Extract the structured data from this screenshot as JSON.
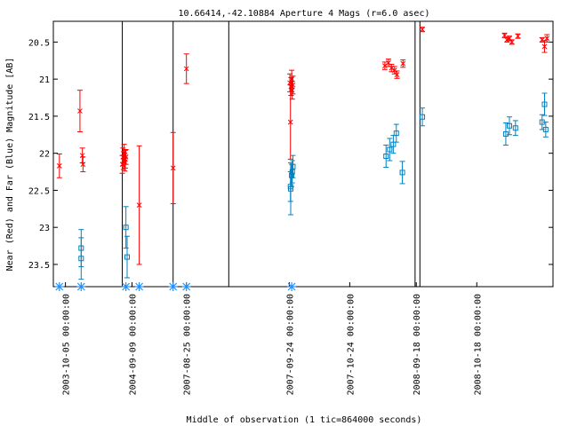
{
  "chart_data": {
    "type": "scatter",
    "title": "10.66414,-42.10884   Aperture 4 Mags (r=6.0 asec)",
    "xlabel": "Middle of observation (1 tic=864000 seconds)",
    "ylabel": "Near (Red) and Far (Blue) Magnitude [AB]",
    "y_inverted": true,
    "ylim": [
      23.8,
      20.22
    ],
    "y_ticks": [
      20.5,
      21,
      21.5,
      22,
      22.5,
      23,
      23.5
    ],
    "y_tick_labels": [
      "20.5",
      "21",
      "21.5",
      "22",
      "22.5",
      "23",
      "23.5"
    ],
    "x_tick_labels": [
      "2003-10-05 00:00:00",
      "2004-09-09 00:00:00",
      "2007-08-25 00:00:00",
      "2007-09-24 00:00:00",
      "2007-10-24 00:00:00",
      "2008-09-18 00:00:00",
      "2008-10-18 00:00:00"
    ],
    "grid": false,
    "colors": {
      "near": "#ff0000",
      "far": "#0080c0",
      "marker": "#1e90ff",
      "far_text": "#0000ff"
    },
    "series": [
      {
        "name": "Near (Red)",
        "color": "#ff0000",
        "marker": "x",
        "points": [
          {
            "x": 0.5,
            "y": 22.17,
            "err": 0.16
          },
          {
            "x": 2.2,
            "y": 21.43,
            "err": 0.28
          },
          {
            "x": 2.4,
            "y": 22.03,
            "err": 0.1
          },
          {
            "x": 2.45,
            "y": 22.15,
            "err": 0.1
          },
          {
            "x": 5.7,
            "y": 22.15,
            "err": 0.12
          },
          {
            "x": 5.75,
            "y": 22.05,
            "err": 0.12
          },
          {
            "x": 5.8,
            "y": 22.1,
            "err": 0.12
          },
          {
            "x": 5.85,
            "y": 22.0,
            "err": 0.12
          },
          {
            "x": 5.9,
            "y": 22.12,
            "err": 0.12
          },
          {
            "x": 5.95,
            "y": 22.08,
            "err": 0.12
          },
          {
            "x": 6.0,
            "y": 22.05,
            "err": 0.1
          },
          {
            "x": 7.1,
            "y": 22.7,
            "err": 0.8
          },
          {
            "x": 9.9,
            "y": 22.2,
            "err": 0.48
          },
          {
            "x": 11.0,
            "y": 20.86,
            "err": 0.2
          },
          {
            "x": 19.6,
            "y": 21.58,
            "err": 0.5
          },
          {
            "x": 19.55,
            "y": 21.05,
            "err": 0.12
          },
          {
            "x": 19.65,
            "y": 21.1,
            "err": 0.12
          },
          {
            "x": 19.7,
            "y": 21.0,
            "err": 0.12
          },
          {
            "x": 19.75,
            "y": 21.15,
            "err": 0.12
          },
          {
            "x": 19.8,
            "y": 21.08,
            "err": 0.12
          },
          {
            "x": 27.4,
            "y": 20.82,
            "err": 0.05
          },
          {
            "x": 27.7,
            "y": 20.78,
            "err": 0.05
          },
          {
            "x": 27.95,
            "y": 20.85,
            "err": 0.05
          },
          {
            "x": 28.2,
            "y": 20.88,
            "err": 0.05
          },
          {
            "x": 28.4,
            "y": 20.94,
            "err": 0.05
          },
          {
            "x": 28.9,
            "y": 20.79,
            "err": 0.05
          },
          {
            "x": 30.5,
            "y": 20.33,
            "err": 0.03
          },
          {
            "x": 37.3,
            "y": 20.41,
            "err": 0.03
          },
          {
            "x": 37.5,
            "y": 20.47,
            "err": 0.03
          },
          {
            "x": 37.7,
            "y": 20.45,
            "err": 0.03
          },
          {
            "x": 37.9,
            "y": 20.5,
            "err": 0.03
          },
          {
            "x": 38.4,
            "y": 20.42,
            "err": 0.03
          },
          {
            "x": 40.4,
            "y": 20.47,
            "err": 0.03
          },
          {
            "x": 40.6,
            "y": 20.56,
            "err": 0.08
          },
          {
            "x": 40.8,
            "y": 20.45,
            "err": 0.05
          }
        ]
      },
      {
        "name": "Far (Blue)",
        "color": "#0080c0",
        "marker": "square",
        "points": [
          {
            "x": 2.3,
            "y": 23.28,
            "err": 0.25
          },
          {
            "x": 2.3,
            "y": 23.42,
            "err": 0.28
          },
          {
            "x": 6.0,
            "y": 23.0,
            "err": 0.28
          },
          {
            "x": 6.1,
            "y": 23.4,
            "err": 0.28
          },
          {
            "x": 19.6,
            "y": 22.45,
            "err": 0.2
          },
          {
            "x": 19.62,
            "y": 22.48,
            "err": 0.35
          },
          {
            "x": 19.7,
            "y": 22.3,
            "err": 0.15
          },
          {
            "x": 19.75,
            "y": 22.25,
            "err": 0.15
          },
          {
            "x": 19.8,
            "y": 22.18,
            "err": 0.15
          },
          {
            "x": 27.5,
            "y": 22.04,
            "err": 0.15
          },
          {
            "x": 27.8,
            "y": 21.95,
            "err": 0.15
          },
          {
            "x": 28.1,
            "y": 21.88,
            "err": 0.12
          },
          {
            "x": 28.35,
            "y": 21.73,
            "err": 0.12
          },
          {
            "x": 28.85,
            "y": 22.26,
            "err": 0.15
          },
          {
            "x": 30.5,
            "y": 21.51,
            "err": 0.12
          },
          {
            "x": 37.4,
            "y": 21.74,
            "err": 0.15
          },
          {
            "x": 37.7,
            "y": 21.63,
            "err": 0.12
          },
          {
            "x": 38.2,
            "y": 21.66,
            "err": 0.1
          },
          {
            "x": 40.4,
            "y": 21.58,
            "err": 0.1
          },
          {
            "x": 40.6,
            "y": 21.34,
            "err": 0.15
          },
          {
            "x": 40.7,
            "y": 21.68,
            "err": 0.1
          }
        ]
      }
    ],
    "baseline_markers": {
      "marker": "asterisk",
      "color": "#1e90ff",
      "x": [
        0.5,
        2.3,
        6.0,
        7.1,
        9.9,
        11.0,
        19.7
      ]
    },
    "separators_x": [
      5.7,
      9.9,
      14.5,
      29.9,
      30.3
    ],
    "x_tick_positions": [
      1.0,
      6.5,
      11.0,
      19.5,
      24.5,
      30.0,
      35.0
    ]
  }
}
